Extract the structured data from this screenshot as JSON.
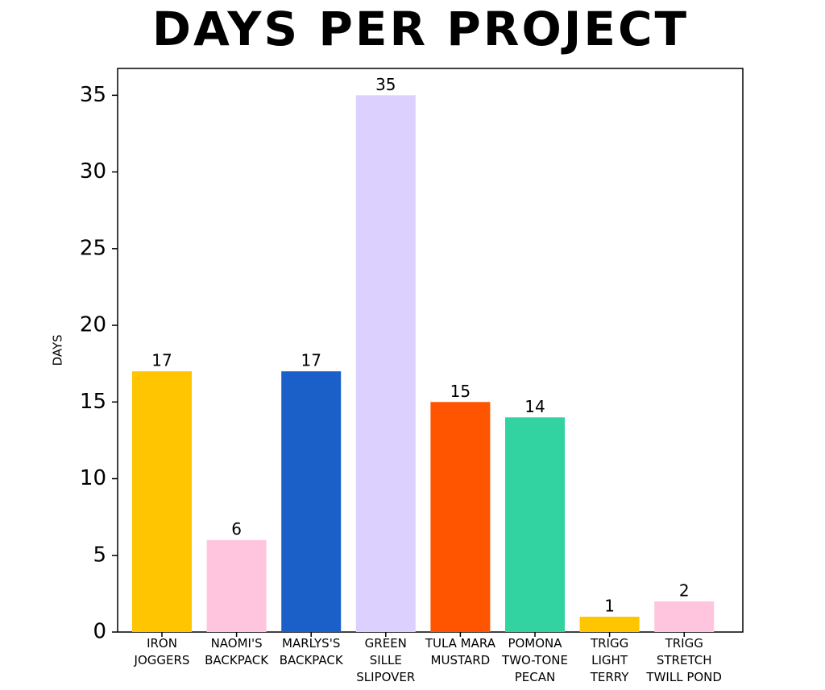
{
  "chart_data": {
    "type": "bar",
    "title": "DAYS PER PROJECT",
    "y_label": "DAYS",
    "categories": [
      "IRON\nJOGGERS",
      "NAOMI'S\nBACKPACK",
      "MARLYS'S\nBACKPACK",
      "GREEN\nSILLE\nSLIPOVER",
      "TULA MARA\nMUSTARD",
      "POMONA\nTWO-TONE\nPECAN",
      "TRIGG\nLIGHT\nTERRY",
      "TRIGG\nSTRETCH\nTWILL POND"
    ],
    "values": [
      17,
      6,
      17,
      35,
      15,
      14,
      1,
      2
    ],
    "colors": [
      "#ffc500",
      "#ffc4de",
      "#1b5fc9",
      "#dcd0ff",
      "#ff5500",
      "#32d3a1",
      "#ffc500",
      "#ffc4de"
    ],
    "ylim": [
      0,
      36.75
    ],
    "yticks": [
      0,
      5,
      10,
      15,
      20,
      25,
      30,
      35
    ],
    "grid": false
  }
}
